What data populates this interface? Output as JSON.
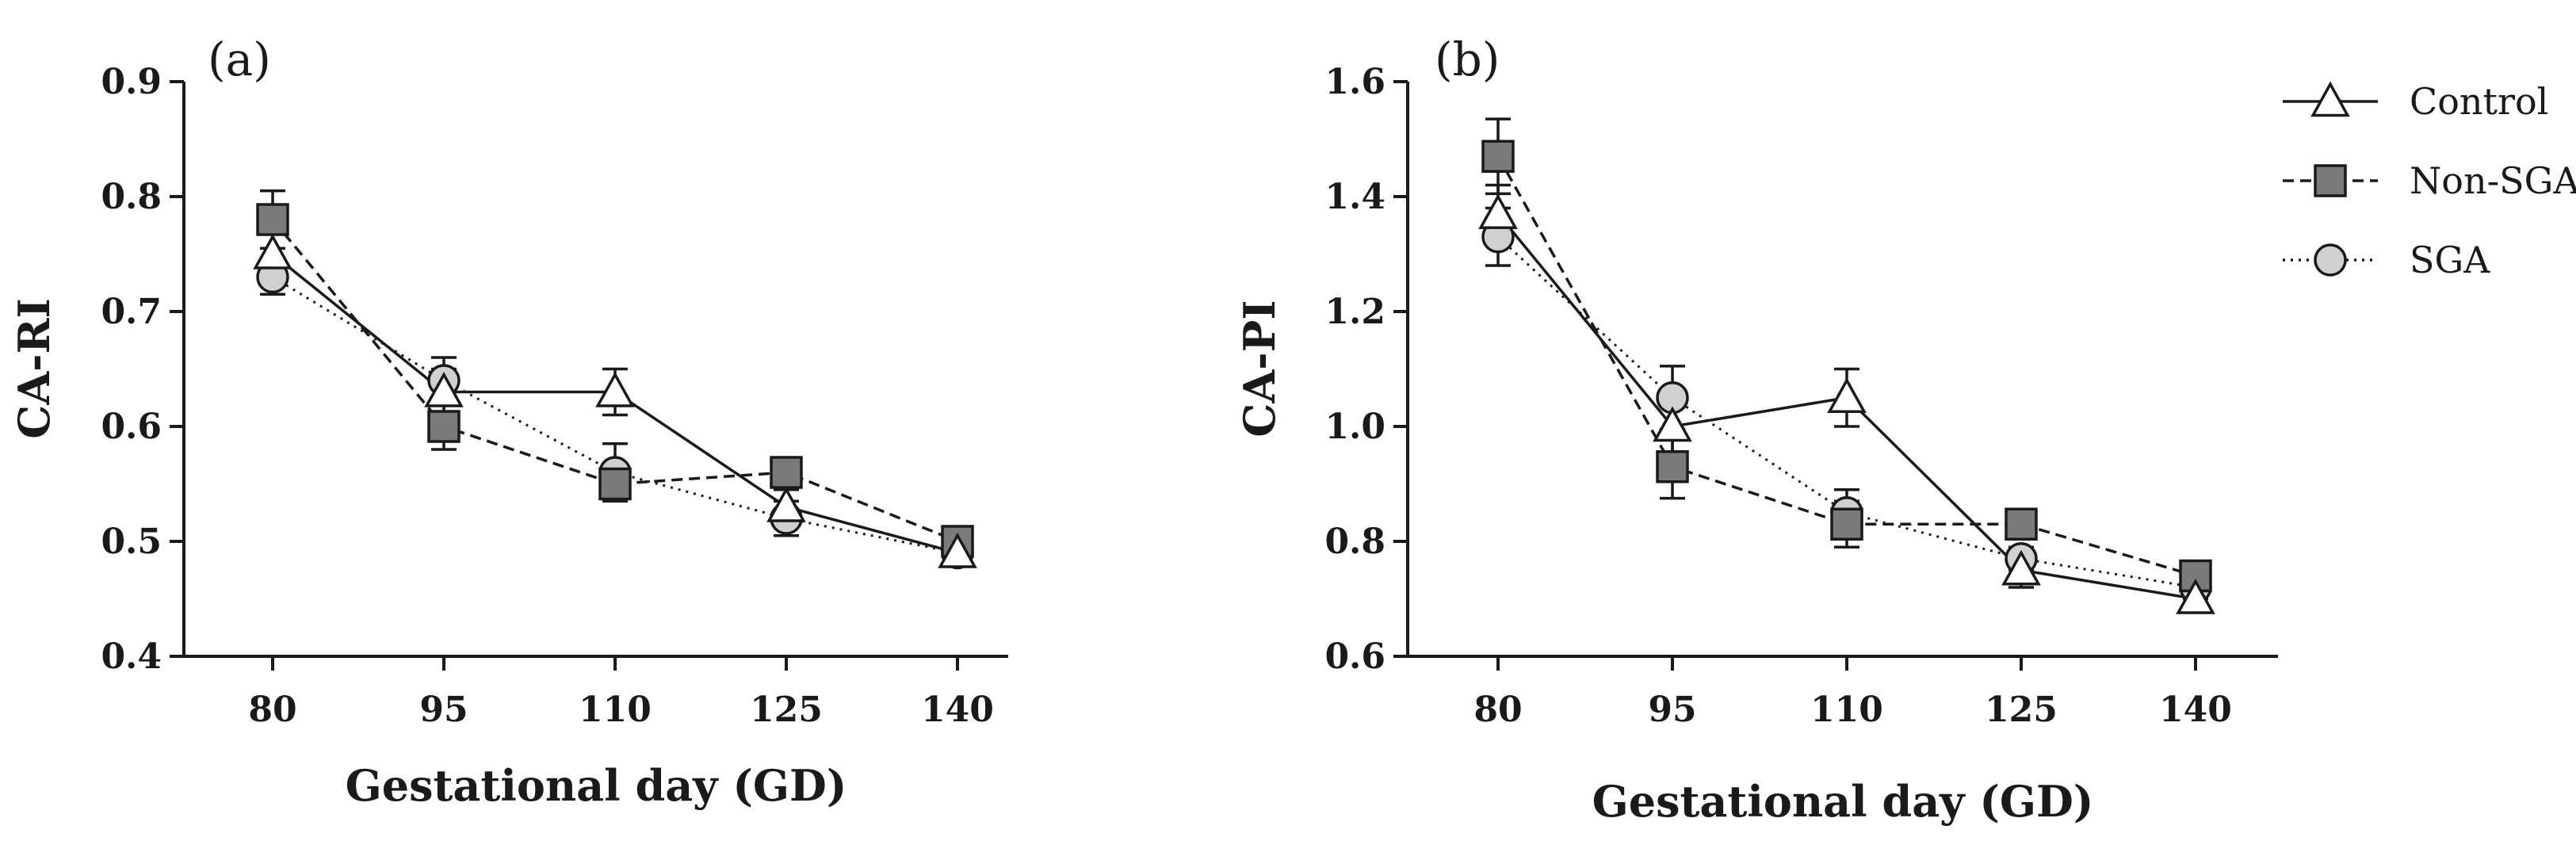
{
  "chart_data": [
    {
      "type": "line",
      "panel_label": "(a)",
      "xlabel": "Gestational day (GD)",
      "ylabel": "CA-RI",
      "x": [
        80,
        95,
        110,
        125,
        140
      ],
      "x_tick_labels": [
        "80",
        "95",
        "110",
        "125",
        "140"
      ],
      "ylim": [
        0.4,
        0.9
      ],
      "y_ticks": [
        0.4,
        0.5,
        0.6,
        0.7,
        0.8,
        0.9
      ],
      "y_tick_labels": [
        "0.4",
        "0.5",
        "0.6",
        "0.7",
        "0.8",
        "0.9"
      ],
      "grid": false,
      "series": [
        {
          "name": "Control",
          "values": [
            0.75,
            0.63,
            0.63,
            0.53,
            0.49
          ],
          "errors": [
            0.02,
            0.02,
            0.02,
            0.015,
            0.01
          ],
          "marker": "triangle",
          "line": "solid",
          "color": "#ffffff"
        },
        {
          "name": "Non-SGA",
          "values": [
            0.78,
            0.6,
            0.55,
            0.56,
            0.5
          ],
          "errors": [
            0.025,
            0.02,
            0.015,
            0.01,
            0.01
          ],
          "marker": "square",
          "line": "dashed",
          "color": "#7a7a7a"
        },
        {
          "name": "SGA",
          "values": [
            0.73,
            0.64,
            0.56,
            0.52,
            0.49
          ],
          "errors": [
            0.015,
            0.02,
            0.025,
            0.015,
            0.01
          ],
          "marker": "circle",
          "line": "dotted",
          "color": "#d0d0d0"
        }
      ]
    },
    {
      "type": "line",
      "panel_label": "(b)",
      "xlabel": "Gestational day (GD)",
      "ylabel": "CA-PI",
      "x": [
        80,
        95,
        110,
        125,
        140
      ],
      "x_tick_labels": [
        "80",
        "95",
        "110",
        "125",
        "140"
      ],
      "ylim": [
        0.6,
        1.6
      ],
      "y_ticks": [
        0.6,
        0.8,
        1.0,
        1.2,
        1.4,
        1.6
      ],
      "y_tick_labels": [
        "0.6",
        "0.8",
        "1.0",
        "1.2",
        "1.4",
        "1.6"
      ],
      "grid": false,
      "legend": {
        "placement": "top-right-outside",
        "entries": [
          "Control",
          "Non-SGA",
          "SGA"
        ]
      },
      "series": [
        {
          "name": "Control",
          "values": [
            1.37,
            1.0,
            1.05,
            0.75,
            0.7
          ],
          "errors": [
            0.05,
            0.05,
            0.05,
            0.03,
            0.02
          ],
          "marker": "triangle",
          "line": "solid",
          "color": "#ffffff"
        },
        {
          "name": "Non-SGA",
          "values": [
            1.47,
            0.93,
            0.83,
            0.83,
            0.74
          ],
          "errors": [
            0.065,
            0.055,
            0.04,
            0.02,
            0.02
          ],
          "marker": "square",
          "line": "dashed",
          "color": "#7a7a7a"
        },
        {
          "name": "SGA",
          "values": [
            1.33,
            1.05,
            0.85,
            0.77,
            0.72
          ],
          "errors": [
            0.05,
            0.055,
            0.04,
            0.02,
            0.02
          ],
          "marker": "circle",
          "line": "dotted",
          "color": "#d0d0d0"
        }
      ]
    }
  ]
}
